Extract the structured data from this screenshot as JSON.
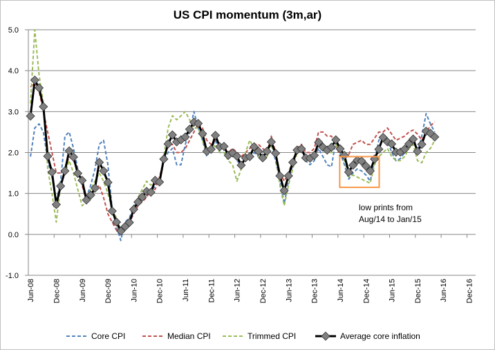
{
  "chart_data": {
    "type": "line",
    "title": "US CPI momentum (3m,ar)",
    "xlabel": "",
    "ylabel": "",
    "ylim": [
      -1.0,
      5.0
    ],
    "y_ticks": [
      "5.0",
      "4.0",
      "3.0",
      "2.0",
      "1.0",
      "0.0",
      "-1.0"
    ],
    "y_tick_values": [
      5,
      4,
      3,
      2,
      1,
      0,
      -1
    ],
    "x_start": "Jun-08",
    "x_tick_labels": [
      "Jun-08",
      "Dec-08",
      "Jun-09",
      "Dec-09",
      "Jun-10",
      "Dec-10",
      "Jun-11",
      "Dec-11",
      "Jun-12",
      "Dec-12",
      "Jun-13",
      "Dec-13",
      "Jun-14",
      "Dec-14",
      "Jun-15",
      "Dec-15",
      "Jun-16",
      "Dec-16"
    ],
    "frequency": "monthly",
    "grid": true,
    "legend_position": "bottom",
    "series": [
      {
        "name": "Core CPI",
        "color": "#4f81bd",
        "style": "dashed",
        "values": [
          1.9,
          2.6,
          2.7,
          2.5,
          1.8,
          1.4,
          0.8,
          1.3,
          2.4,
          2.5,
          2.1,
          1.6,
          1.2,
          0.9,
          1.2,
          1.6,
          2.2,
          2.3,
          1.7,
          0.6,
          0.2,
          -0.15,
          0.3,
          0.4,
          0.7,
          0.8,
          0.9,
          1.1,
          1.0,
          1.2,
          1.3,
          1.8,
          2.0,
          2.1,
          1.7,
          1.7,
          2.2,
          2.5,
          3.0,
          2.6,
          2.3,
          1.9,
          2.1,
          2.3,
          2.0,
          2.0,
          1.9,
          2.0,
          1.8,
          1.7,
          1.8,
          1.9,
          2.0,
          1.9,
          1.9,
          2.1,
          2.2,
          1.8,
          1.3,
          0.75,
          1.3,
          1.7,
          2.1,
          2.1,
          1.8,
          1.7,
          1.8,
          2.1,
          1.9,
          1.7,
          1.65,
          2.3,
          2.0,
          1.7,
          1.35,
          1.5,
          1.6,
          1.55,
          1.45,
          1.3,
          1.8,
          2.3,
          2.4,
          2.3,
          2.0,
          1.8,
          1.85,
          2.0,
          2.3,
          2.4,
          2.0,
          2.4,
          2.95,
          2.7,
          2.5
        ]
      },
      {
        "name": "Median CPI",
        "color": "#c0504d",
        "style": "dashed",
        "values": [
          3.6,
          3.7,
          3.5,
          3.0,
          2.5,
          2.0,
          1.5,
          1.5,
          1.6,
          1.9,
          1.8,
          1.6,
          1.2,
          0.8,
          0.9,
          1.1,
          1.2,
          0.9,
          0.5,
          0.3,
          0.1,
          0.0,
          0.15,
          0.3,
          0.5,
          0.7,
          0.8,
          0.9,
          1.1,
          1.1,
          1.4,
          1.8,
          2.2,
          2.2,
          2.0,
          2.0,
          2.1,
          2.3,
          2.5,
          2.7,
          2.6,
          2.3,
          2.2,
          2.3,
          2.2,
          2.1,
          2.0,
          2.1,
          2.0,
          1.9,
          2.0,
          2.1,
          2.2,
          2.2,
          2.1,
          2.0,
          2.4,
          2.0,
          1.5,
          1.3,
          1.5,
          1.8,
          2.1,
          2.2,
          2.0,
          2.0,
          2.1,
          2.5,
          2.5,
          2.4,
          2.4,
          2.2,
          1.9,
          1.9,
          1.95,
          2.2,
          2.25,
          2.3,
          2.2,
          2.2,
          2.35,
          2.5,
          2.5,
          2.6,
          2.45,
          2.3,
          2.35,
          2.4,
          2.5,
          2.55,
          2.45,
          2.3,
          2.5,
          2.65,
          2.75
        ]
      },
      {
        "name": "Trimmed CPI",
        "color": "#9bbb59",
        "style": "dashed",
        "values": [
          3.2,
          5.0,
          3.9,
          3.2,
          1.6,
          1.0,
          0.3,
          1.2,
          1.5,
          1.8,
          1.5,
          1.1,
          0.7,
          0.8,
          1.1,
          1.3,
          1.5,
          1.3,
          1.0,
          0.6,
          0.4,
          0.1,
          0.2,
          0.3,
          0.6,
          0.9,
          1.1,
          1.3,
          1.2,
          1.3,
          1.3,
          1.9,
          2.6,
          2.9,
          2.8,
          2.9,
          3.0,
          2.8,
          2.6,
          2.6,
          2.3,
          2.0,
          2.0,
          2.2,
          2.0,
          2.0,
          1.8,
          1.7,
          1.3,
          1.6,
          2.0,
          2.3,
          2.1,
          1.9,
          1.8,
          1.9,
          2.2,
          1.9,
          1.2,
          0.7,
          1.2,
          1.6,
          2.0,
          2.1,
          1.8,
          1.8,
          1.9,
          2.2,
          2.1,
          2.0,
          2.0,
          2.2,
          2.0,
          1.8,
          1.4,
          1.45,
          1.4,
          1.35,
          1.3,
          1.25,
          1.7,
          1.9,
          2.0,
          2.1,
          1.9,
          1.8,
          1.8,
          1.9,
          2.1,
          2.2,
          1.8,
          1.75,
          2.0,
          2.1,
          2.3
        ]
      },
      {
        "name": "Average core inflation",
        "color": "#000000",
        "style": "solid-diamond",
        "marker_color": "#808080",
        "values": [
          2.89,
          3.77,
          3.58,
          3.12,
          1.91,
          1.52,
          0.73,
          1.18,
          1.55,
          2.04,
          1.89,
          1.49,
          1.32,
          0.84,
          0.96,
          1.13,
          1.76,
          1.55,
          1.27,
          0.57,
          0.3,
          0.08,
          0.19,
          0.29,
          0.61,
          0.79,
          0.91,
          1.05,
          1.03,
          1.32,
          1.28,
          1.84,
          2.21,
          2.43,
          2.26,
          2.31,
          2.38,
          2.57,
          2.74,
          2.71,
          2.46,
          2.03,
          2.08,
          2.42,
          2.14,
          2.15,
          1.93,
          1.99,
          1.91,
          1.69,
          1.87,
          1.9,
          2.14,
          2.03,
          1.87,
          2.03,
          2.26,
          1.98,
          1.43,
          1.07,
          1.43,
          1.76,
          2.06,
          2.09,
          1.87,
          1.86,
          1.93,
          2.25,
          2.13,
          2.06,
          2.13,
          2.31,
          2.09,
          1.93,
          1.52,
          1.69,
          1.81,
          1.79,
          1.67,
          1.55,
          1.84,
          2.08,
          2.37,
          2.26,
          2.21,
          2.01,
          2.01,
          2.08,
          2.21,
          2.33,
          2.03,
          2.2,
          2.52,
          2.47,
          2.38
        ]
      }
    ],
    "annotations": [
      {
        "text_lines": [
          "low prints from",
          "Aug/14  to Jan/15"
        ],
        "highlight_from": "Aug-14",
        "highlight_to": "Jan-15",
        "highlight_color": "#f79646"
      }
    ]
  }
}
